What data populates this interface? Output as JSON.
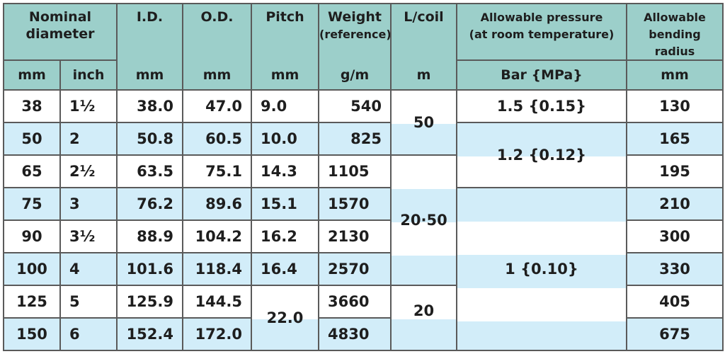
{
  "headers": {
    "nominal_diameter": [
      "Nominal",
      "diameter"
    ],
    "id": "I.D.",
    "od": "O.D.",
    "pitch": "Pitch",
    "weight": "Weight",
    "weight_note": "(reference)",
    "l_coil": "L/coil",
    "allowable_pressure": "Allowable pressure",
    "allowable_pressure_note": "(at room temperature)",
    "bending_radius": [
      "Allowable",
      "bending radius"
    ]
  },
  "units": {
    "nominal_mm": "mm",
    "nominal_inch": "inch",
    "id": "mm",
    "od": "mm",
    "pitch": "mm",
    "weight": "g/m",
    "l_coil": "m",
    "pressure": "Bar {MPa}",
    "bending_radius": "mm"
  },
  "rows": [
    {
      "mm": "38",
      "inch": "1½",
      "id": "38.0",
      "od": "47.0",
      "pitch": "9.0",
      "weight": "540",
      "radius": "130"
    },
    {
      "mm": "50",
      "inch": "2",
      "id": "50.8",
      "od": "60.5",
      "pitch": "10.0",
      "weight": "825",
      "radius": "165"
    },
    {
      "mm": "65",
      "inch": "2½",
      "id": "63.5",
      "od": "75.1",
      "pitch": "14.3",
      "weight": "1105",
      "radius": "195"
    },
    {
      "mm": "75",
      "inch": "3",
      "id": "76.2",
      "od": "89.6",
      "pitch": "15.1",
      "weight": "1570",
      "radius": "210"
    },
    {
      "mm": "90",
      "inch": "3½",
      "id": "88.9",
      "od": "104.2",
      "pitch": "16.2",
      "weight": "2130",
      "radius": "300"
    },
    {
      "mm": "100",
      "inch": "4",
      "id": "101.6",
      "od": "118.4",
      "pitch": "16.4",
      "weight": "2570",
      "radius": "330"
    },
    {
      "mm": "125",
      "inch": "5",
      "id": "125.9",
      "od": "144.5",
      "pitch": "22.0",
      "weight": "3660",
      "radius": "405"
    },
    {
      "mm": "150",
      "inch": "6",
      "id": "152.4",
      "od": "172.0",
      "pitch": "",
      "weight": "4830",
      "radius": "675"
    }
  ],
  "l_coil_groups": [
    "50",
    "20·50",
    "20"
  ],
  "pressure_groups": [
    "1.5 {0.15}",
    "1.2 {0.12}",
    "1 {0.10}"
  ],
  "colors": {
    "header": "#9ccfca",
    "row_light": "#ffffff",
    "row_blue": "#d2edf9",
    "border": "#5a5a5a",
    "text": "#1e1e1e"
  }
}
